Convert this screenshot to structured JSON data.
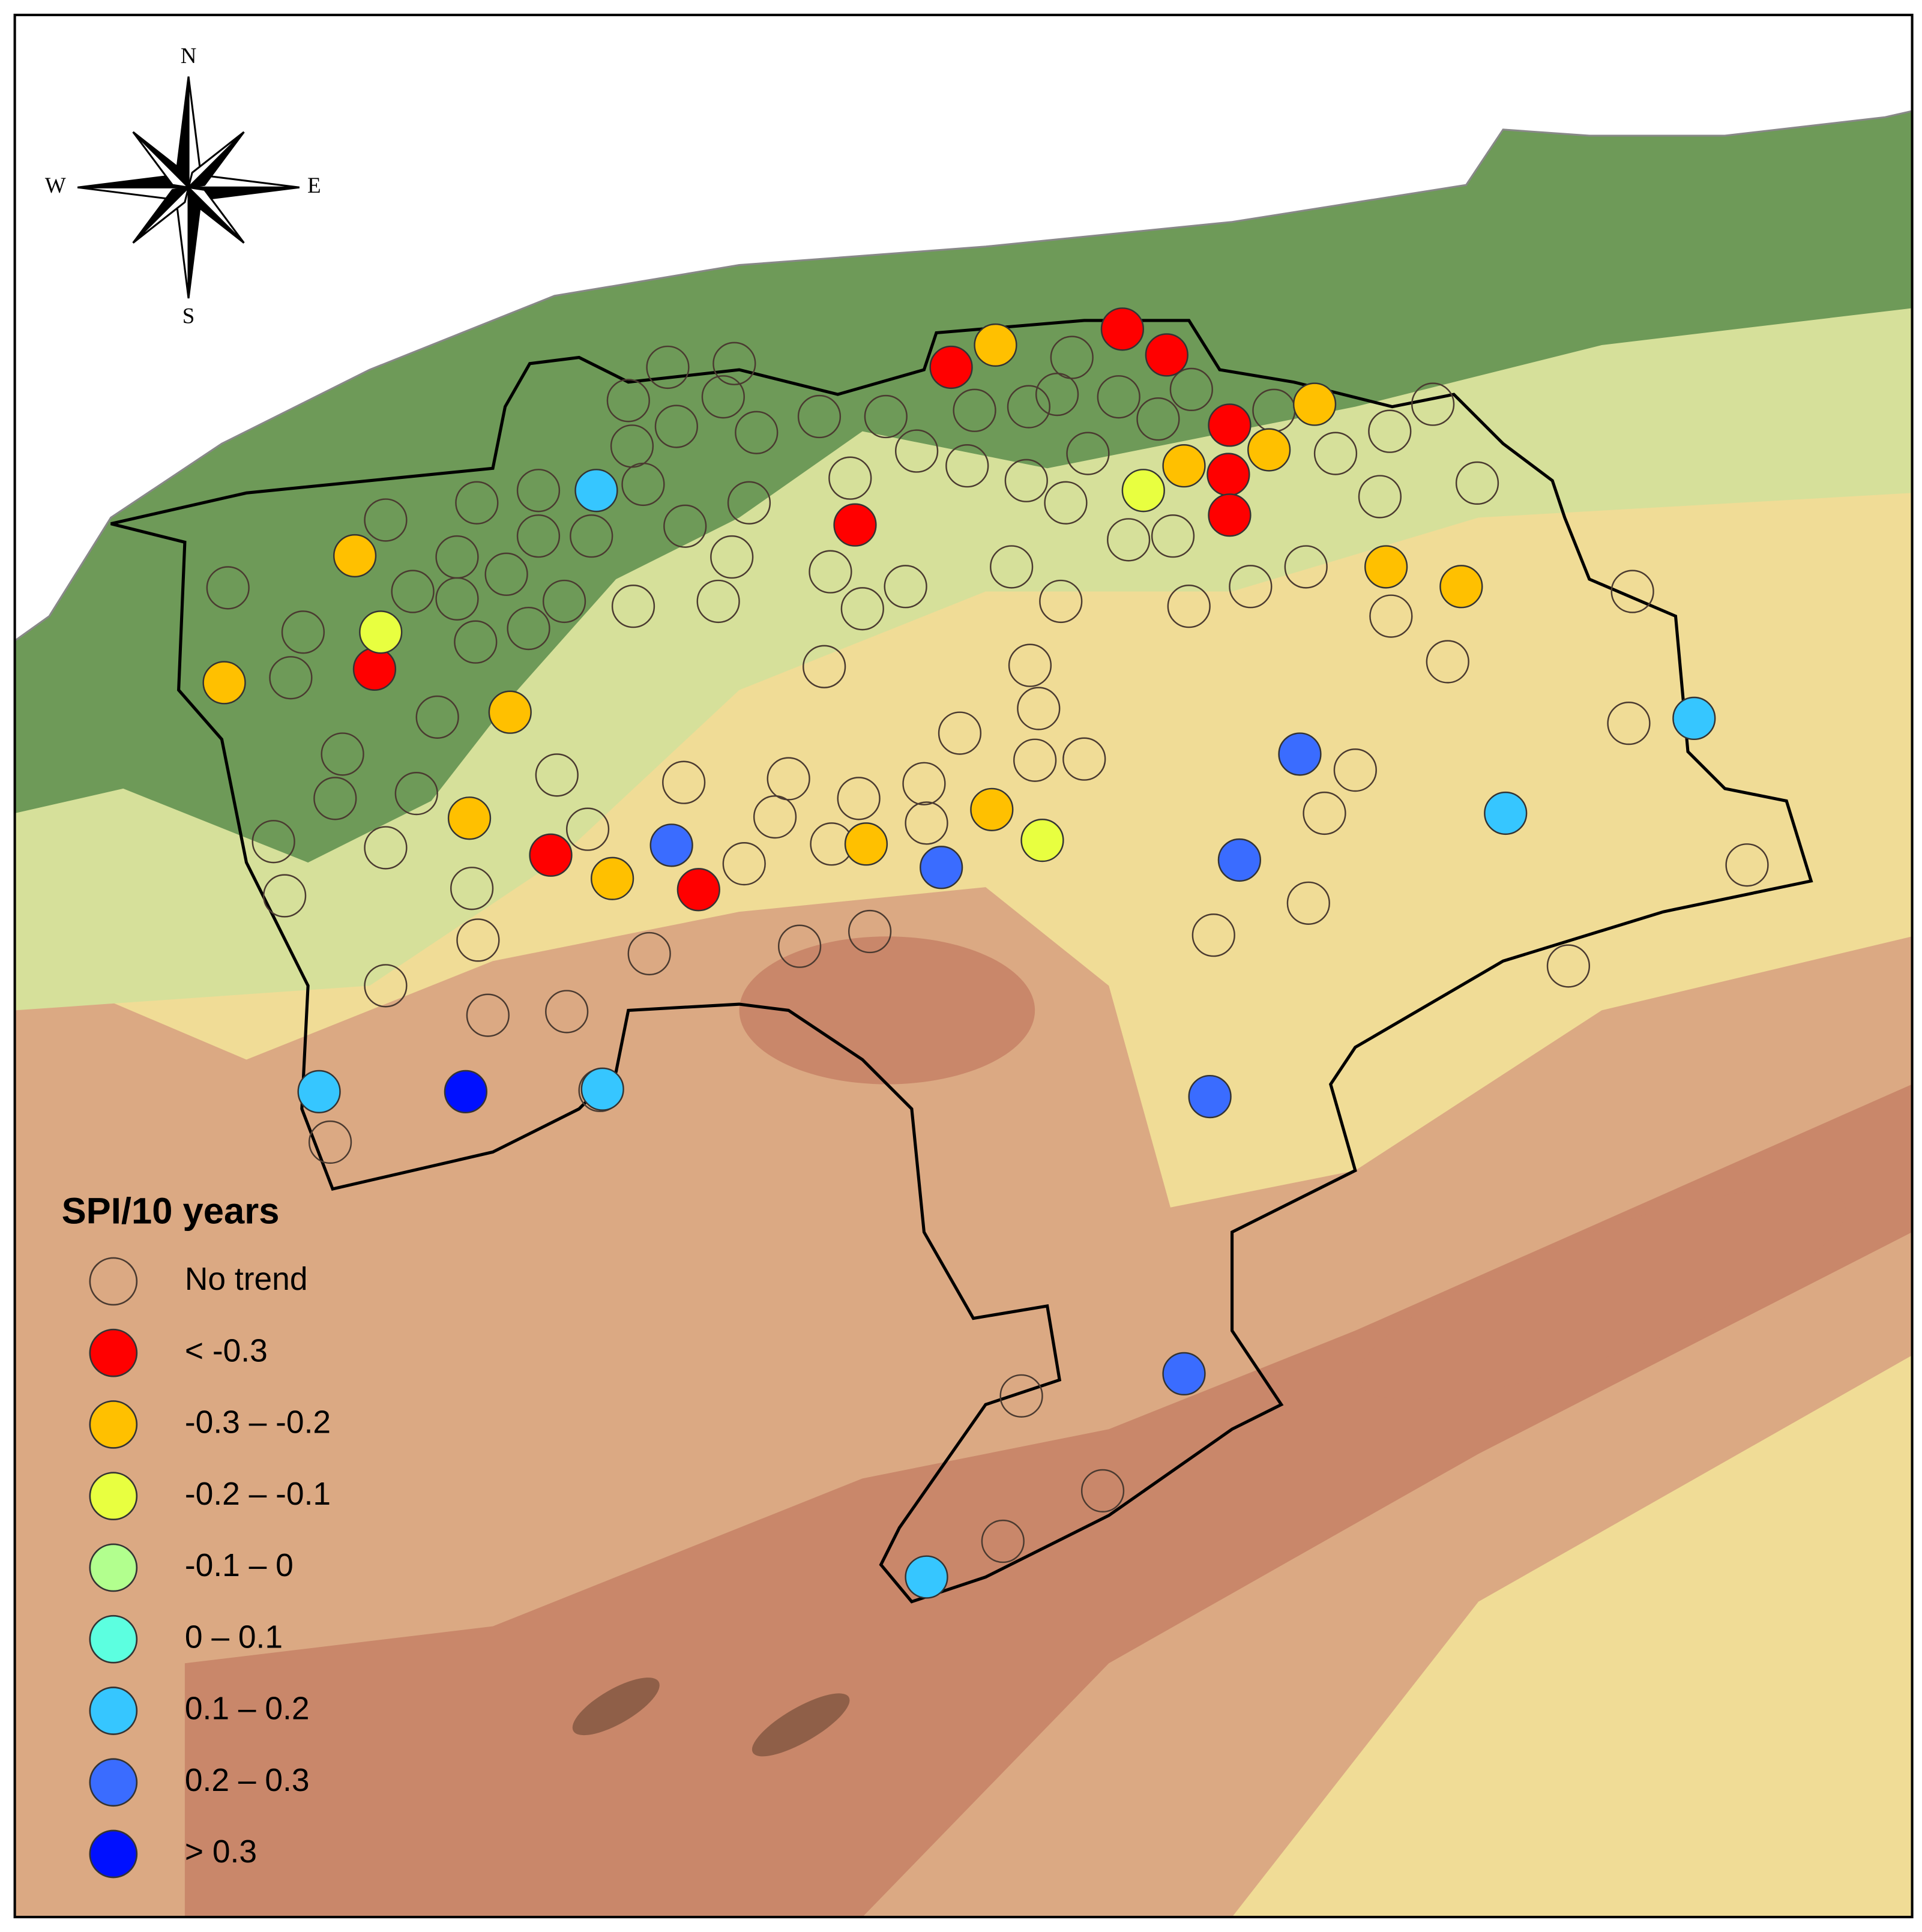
{
  "legend": {
    "title": "SPI/10 years",
    "items": [
      {
        "label": "No trend"
      },
      {
        "label": "< -0.3",
        "color": "#ff0000"
      },
      {
        "label": "-0.3 – -0.2",
        "color": "#ffc000"
      },
      {
        "label": "-0.2 – -0.1",
        "color": "#e8ff40"
      },
      {
        "label": "-0.1 – 0",
        "color": "#b2ff8e"
      },
      {
        "label": "0 – 0.1",
        "color": "#5cffe0"
      },
      {
        "label": "0.1 – 0.2",
        "color": "#36c6ff"
      },
      {
        "label": "0.2 – 0.3",
        "color": "#3a6cff"
      },
      {
        "label": "> 0.3",
        "color": "#0010ff"
      }
    ]
  },
  "compass": {
    "n": "N",
    "s": "S",
    "e": "E",
    "w": "W"
  }
}
